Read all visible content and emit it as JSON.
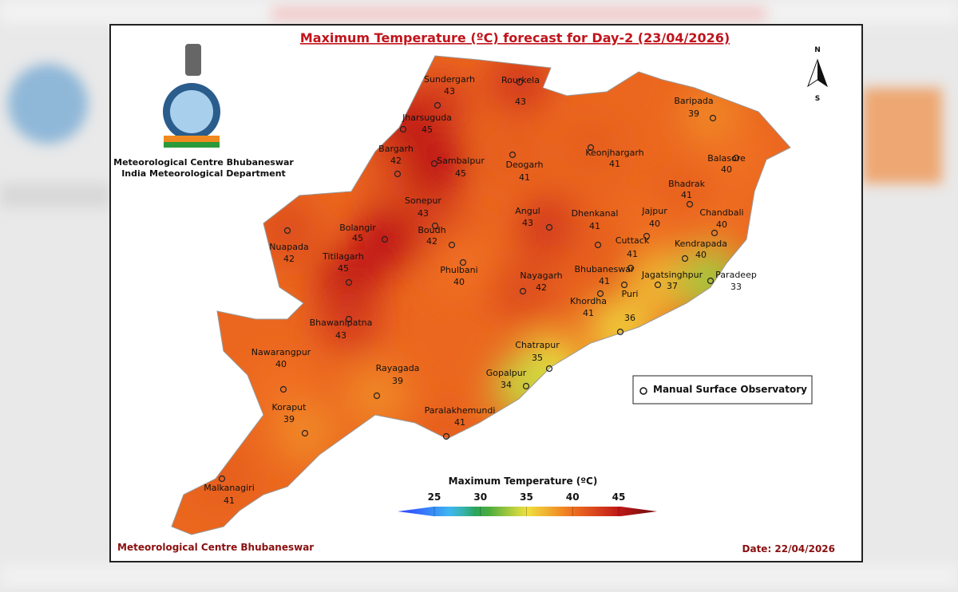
{
  "header": {
    "title": "Maximum Temperature (ºC) forecast for Day-2 (23/04/2026)",
    "org_line1": "Meteorological Centre Bhubaneswar",
    "org_line2": "India Meteorological Department"
  },
  "compass": {
    "north": "N",
    "south": "S"
  },
  "stations": [
    {
      "name": "Sundergarh",
      "temp": 43
    },
    {
      "name": "Rourkela",
      "temp": 43
    },
    {
      "name": "Jharsuguda",
      "temp": 45
    },
    {
      "name": "Baripada",
      "temp": 39
    },
    {
      "name": "Keonjhargarh",
      "temp": 41
    },
    {
      "name": "Bargarh",
      "temp": 42
    },
    {
      "name": "Sambalpur",
      "temp": 45
    },
    {
      "name": "Deogarh",
      "temp": 41
    },
    {
      "name": "Balasore",
      "temp": 40
    },
    {
      "name": "Bhadrak",
      "temp": 41
    },
    {
      "name": "Sonepur",
      "temp": 43
    },
    {
      "name": "Angul",
      "temp": 43
    },
    {
      "name": "Dhenkanal",
      "temp": 41
    },
    {
      "name": "Jajpur",
      "temp": 40
    },
    {
      "name": "Chandbali",
      "temp": 40
    },
    {
      "name": "Bolangir",
      "temp": 45
    },
    {
      "name": "Boudh",
      "temp": 42
    },
    {
      "name": "Nuapada",
      "temp": 42
    },
    {
      "name": "Kendrapada",
      "temp": 40
    },
    {
      "name": "Cuttack",
      "temp": 41
    },
    {
      "name": "Titilagarh",
      "temp": 45
    },
    {
      "name": "Phulbani",
      "temp": 40
    },
    {
      "name": "Nayagarh",
      "temp": 42
    },
    {
      "name": "Bhubaneswar",
      "temp": 41
    },
    {
      "name": "Jagatsinghpur",
      "temp": 37
    },
    {
      "name": "Paradeep",
      "temp": 33
    },
    {
      "name": "Khordha",
      "temp": 41
    },
    {
      "name": "Puri",
      "temp": 36
    },
    {
      "name": "Bhawanipatna",
      "temp": 43
    },
    {
      "name": "Chatrapur",
      "temp": 35
    },
    {
      "name": "Nawarangpur",
      "temp": 40
    },
    {
      "name": "Rayagada",
      "temp": 39
    },
    {
      "name": "Gopalpur",
      "temp": 34
    },
    {
      "name": "Koraput",
      "temp": 39
    },
    {
      "name": "Paralakhemundi",
      "temp": 41
    },
    {
      "name": "Malkanagiri",
      "temp": 41
    }
  ],
  "legend": {
    "colorbar_title": "Maximum Temperature (ºC)",
    "ticks": [
      25,
      30,
      35,
      40,
      45
    ],
    "observatory_label": "Manual Surface Observatory"
  },
  "footer": {
    "left": "Meteorological Centre Bhubaneswar",
    "date": "Date: 22/04/2026"
  }
}
